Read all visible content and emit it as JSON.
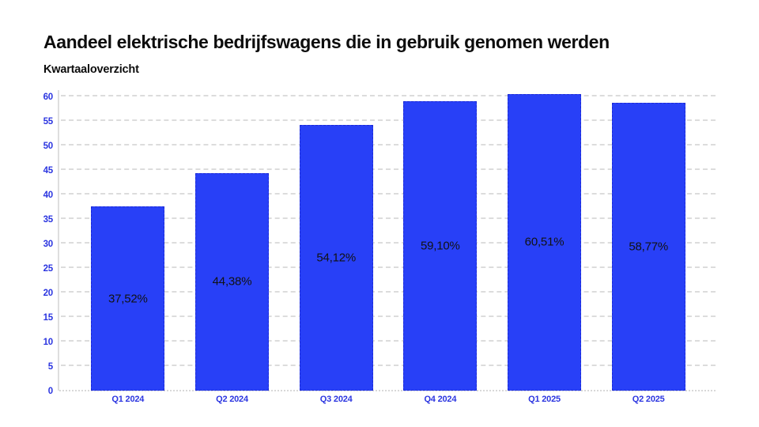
{
  "header": {
    "title": "Aandeel elektrische bedrijfswagens die in gebruik genomen werden",
    "subtitle": "Kwartaaloverzicht"
  },
  "colors": {
    "bar_fill": "#2840f7",
    "bar_border": "#1c2bd6",
    "axis_text": "#2b35e0",
    "value_text": "#121212",
    "gridline": "#dcdcdc",
    "background": "#ffffff"
  },
  "chart_data": {
    "type": "bar",
    "title": "Aandeel elektrische bedrijfswagens die in gebruik genomen werden",
    "subtitle": "Kwartaaloverzicht",
    "categories": [
      "Q1 2024",
      "Q2 2024",
      "Q3 2024",
      "Q4 2024",
      "Q1 2025",
      "Q2 2025"
    ],
    "values": [
      37.52,
      44.38,
      54.12,
      59.1,
      60.51,
      58.77
    ],
    "value_labels": [
      "37,52%",
      "44,38%",
      "54,12%",
      "59,10%",
      "60,51%",
      "58,77%"
    ],
    "xlabel": "",
    "ylabel": "",
    "ylim": [
      0,
      60
    ],
    "ytick_step": 5,
    "yticks": [
      0,
      5,
      10,
      15,
      20,
      25,
      30,
      35,
      40,
      45,
      50,
      55,
      60
    ],
    "grid": "horizontal-dashed",
    "legend_position": "none",
    "value_label_position": "inside-center",
    "decimal_separator": ","
  }
}
